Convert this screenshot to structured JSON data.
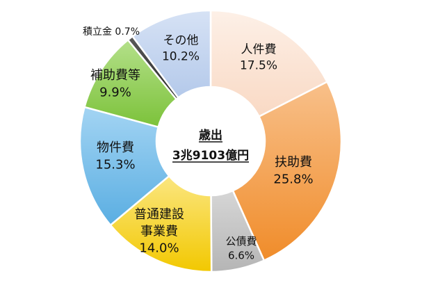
{
  "chart_data": {
    "type": "pie",
    "style": "donut",
    "center": {
      "line1": "歳出",
      "line2": "3兆9103億円"
    },
    "slices": [
      {
        "label": "人件費",
        "label_lines": [
          "人件費"
        ],
        "percent_text": "17.5%",
        "value": 17.5,
        "color": "#fbe3d4"
      },
      {
        "label": "扶助費",
        "label_lines": [
          "扶助費"
        ],
        "percent_text": "25.8%",
        "value": 25.8,
        "color": "#f6a04d"
      },
      {
        "label": "公債費",
        "label_lines": [
          "公債費"
        ],
        "percent_text": "6.6%",
        "value": 6.6,
        "color": "#c9c9c9"
      },
      {
        "label": "普通建設事業費",
        "label_lines": [
          "普通建設",
          "事業費"
        ],
        "percent_text": "14.0%",
        "value": 14.0,
        "color": "#f5d321"
      },
      {
        "label": "物件費",
        "label_lines": [
          "物件費"
        ],
        "percent_text": "15.3%",
        "value": 15.3,
        "color": "#79bfea"
      },
      {
        "label": "補助費等",
        "label_lines": [
          "補助費等"
        ],
        "percent_text": "9.9%",
        "value": 9.9,
        "color": "#92d050"
      },
      {
        "label": "積立金",
        "label_lines": [
          "積立金"
        ],
        "percent_text": "0.7%",
        "value": 0.7,
        "color": "#404040"
      },
      {
        "label": "その他",
        "label_lines": [
          "その他"
        ],
        "percent_text": "10.2%",
        "value": 10.2,
        "color": "#c5d6f0"
      }
    ]
  }
}
